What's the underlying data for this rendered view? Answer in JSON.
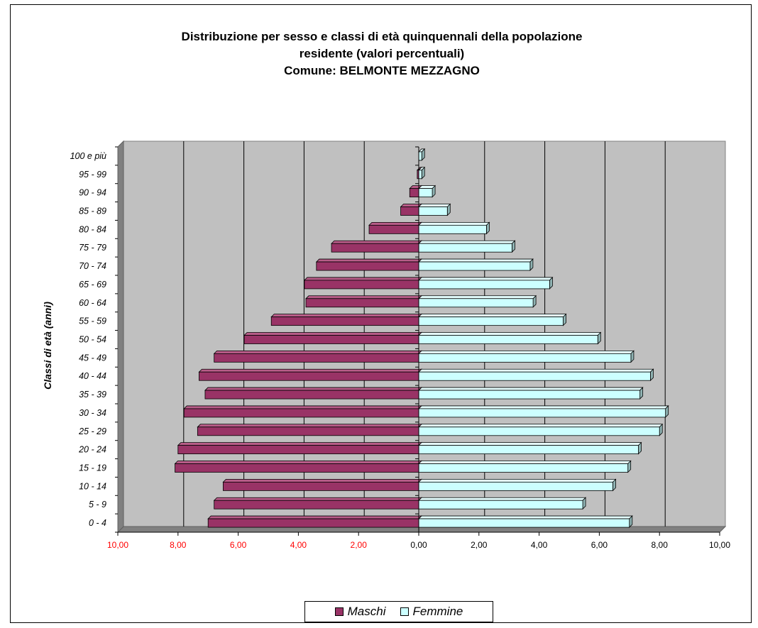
{
  "chart_data": {
    "type": "bar",
    "orientation": "horizontal",
    "title": [
      "Distribuzione per sesso e classi di età quinquennali della popolazione",
      "residente (valori percentuali)",
      "Comune: BELMONTE MEZZAGNO"
    ],
    "ylabel": "Classi di età (anni)",
    "xlabel": "",
    "xlim": [
      -10,
      10
    ],
    "x_tick_labels": [
      "10,00",
      "8,00",
      "6,00",
      "4,00",
      "2,00",
      "0,00",
      "2,00",
      "4,00",
      "6,00",
      "8,00",
      "10,00"
    ],
    "grid": true,
    "legend_position": "bottom",
    "categories": [
      "0 - 4",
      "5 - 9",
      "10 - 14",
      "15 - 19",
      "20 - 24",
      "25 - 29",
      "30 - 34",
      "35 - 39",
      "40 - 44",
      "45 - 49",
      "50 - 54",
      "55 - 59",
      "60 - 64",
      "65 - 69",
      "70 - 74",
      "75 - 79",
      "80 - 84",
      "85 - 89",
      "90 - 94",
      "95 - 99",
      "100 e più"
    ],
    "series": [
      {
        "name": "Maschi",
        "color": "#993366",
        "values": [
          7.0,
          6.8,
          6.5,
          8.1,
          8.0,
          7.35,
          7.8,
          7.1,
          7.3,
          6.8,
          5.8,
          4.9,
          3.75,
          3.8,
          3.4,
          2.9,
          1.65,
          0.6,
          0.3,
          0.05,
          0.0
        ]
      },
      {
        "name": "Femmine",
        "color": "#ccffff",
        "values": [
          7.0,
          5.45,
          6.45,
          6.95,
          7.3,
          8.0,
          8.2,
          7.35,
          7.7,
          7.05,
          5.95,
          4.8,
          3.8,
          4.35,
          3.7,
          3.1,
          2.25,
          0.95,
          0.45,
          0.1,
          0.1
        ]
      }
    ]
  }
}
